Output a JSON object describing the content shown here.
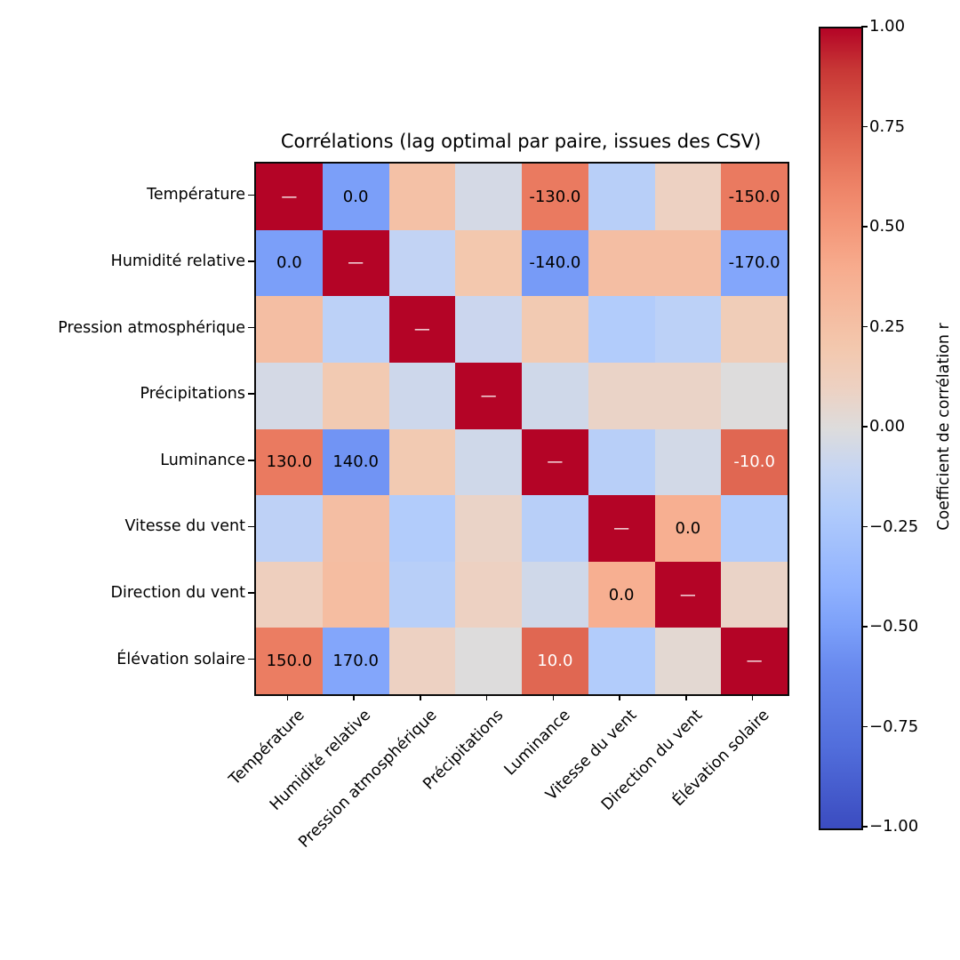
{
  "chart_data": {
    "type": "heatmap",
    "title": "Corrélations (lag optimal par paire, issues des CSV)",
    "categories": [
      "Température",
      "Humidité relative",
      "Pression atmosphérique",
      "Précipitations",
      "Luminance",
      "Vitesse du vent",
      "Direction du vent",
      "Élévation solaire"
    ],
    "value_range": [
      -1,
      1
    ],
    "colormap": "coolwarm",
    "matrix": [
      [
        1.0,
        -0.5,
        0.25,
        -0.04,
        0.64,
        -0.17,
        0.1,
        0.64
      ],
      [
        -0.5,
        1.0,
        -0.12,
        0.2,
        -0.52,
        0.27,
        0.27,
        -0.46
      ],
      [
        0.27,
        -0.15,
        1.0,
        -0.08,
        0.18,
        -0.2,
        -0.15,
        0.15
      ],
      [
        -0.04,
        0.18,
        -0.07,
        1.0,
        -0.06,
        0.08,
        0.08,
        0.0
      ],
      [
        0.64,
        -0.55,
        0.18,
        -0.06,
        1.0,
        -0.17,
        -0.05,
        0.72
      ],
      [
        -0.14,
        0.27,
        -0.2,
        0.08,
        -0.17,
        1.0,
        0.38,
        -0.2
      ],
      [
        0.12,
        0.28,
        -0.17,
        0.1,
        -0.06,
        0.38,
        1.0,
        0.08
      ],
      [
        0.63,
        -0.46,
        0.1,
        0.0,
        0.72,
        -0.2,
        0.04,
        1.0
      ]
    ],
    "annotations": [
      [
        "—",
        "0.0",
        "",
        "",
        "-130.0",
        "",
        "",
        "-150.0"
      ],
      [
        "0.0",
        "—",
        "",
        "",
        "-140.0",
        "",
        "",
        "-170.0"
      ],
      [
        "",
        "",
        "—",
        "",
        "",
        "",
        "",
        ""
      ],
      [
        "",
        "",
        "",
        "—",
        "",
        "",
        "",
        ""
      ],
      [
        "130.0",
        "140.0",
        "",
        "",
        "—",
        "",
        "",
        "-10.0"
      ],
      [
        "",
        "",
        "",
        "",
        "",
        "—",
        "0.0",
        ""
      ],
      [
        "",
        "",
        "",
        "",
        "",
        "0.0",
        "—",
        ""
      ],
      [
        "150.0",
        "170.0",
        "",
        "",
        "10.0",
        "",
        "",
        "—"
      ]
    ],
    "colormap_stops": [
      [
        -1.0,
        "#3b4cc0"
      ],
      [
        -0.8,
        "#516ddb"
      ],
      [
        -0.6,
        "#6889ee"
      ],
      [
        -0.5,
        "#7b9ff9"
      ],
      [
        -0.4,
        "#8fb1fe"
      ],
      [
        -0.2,
        "#b2ccfb"
      ],
      [
        -0.1,
        "#c6d5f2"
      ],
      [
        0.0,
        "#dddcdc"
      ],
      [
        0.1,
        "#edd1c2"
      ],
      [
        0.2,
        "#f3c8ae"
      ],
      [
        0.4,
        "#f7ac8e"
      ],
      [
        0.5,
        "#f4987a"
      ],
      [
        0.6,
        "#ee8468"
      ],
      [
        0.7,
        "#e36c55"
      ],
      [
        0.8,
        "#d65244"
      ],
      [
        0.9,
        "#c73635"
      ],
      [
        1.0,
        "#b40426"
      ]
    ],
    "colorbar": {
      "label": "Coefficient de corrélation r",
      "ticks": [
        {
          "value": 1.0,
          "label": "1.00"
        },
        {
          "value": 0.75,
          "label": "0.75"
        },
        {
          "value": 0.5,
          "label": "0.50"
        },
        {
          "value": 0.25,
          "label": "0.25"
        },
        {
          "value": 0.0,
          "label": "0.00"
        },
        {
          "value": -0.25,
          "label": "−0.25"
        },
        {
          "value": -0.5,
          "label": "−0.50"
        },
        {
          "value": -0.75,
          "label": "−0.75"
        },
        {
          "value": -1.0,
          "label": "−1.00"
        }
      ]
    }
  }
}
